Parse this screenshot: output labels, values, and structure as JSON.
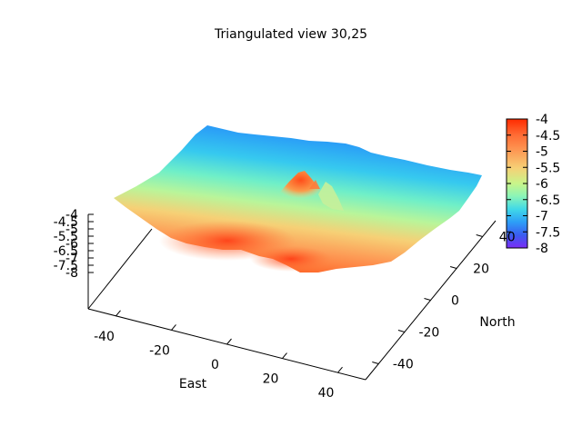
{
  "chart_data": {
    "type": "surface3d",
    "title": "Triangulated view 30,25",
    "xlabel": "East",
    "ylabel": "North",
    "zlabel": "",
    "view": {
      "rot_x": 30,
      "rot_z": 25
    },
    "x_range": [
      -50,
      50
    ],
    "y_range": [
      -50,
      50
    ],
    "z_range": [
      -8,
      -4
    ],
    "x_ticks": [
      "-40",
      "-20",
      "0",
      "20",
      "40"
    ],
    "y_ticks": [
      "-40",
      "-20",
      "0",
      "20",
      "40"
    ],
    "z_ticks": [
      "-4",
      "-4.5",
      "-5",
      "-5.5",
      "-6",
      "-6.5",
      "-7",
      "-7.5",
      "-8"
    ],
    "colorbar": {
      "ticks": [
        "-4",
        "-4.5",
        "-5",
        "-5.5",
        "-6",
        "-6.5",
        "-7",
        "-7.5",
        "-8"
      ],
      "range": [
        -8,
        -4
      ],
      "colors": [
        "#ff2a00",
        "#ff6a33",
        "#fd9a55",
        "#f6d076",
        "#c8f58a",
        "#8af5b8",
        "#40d8e8",
        "#2d9ef7",
        "#3a5cf0",
        "#7b2df5"
      ]
    },
    "surface_features": {
      "front_corner_level": -5,
      "back_corner_level": -7.5,
      "peak_level": -4.5,
      "colormap": "rainbow"
    }
  }
}
